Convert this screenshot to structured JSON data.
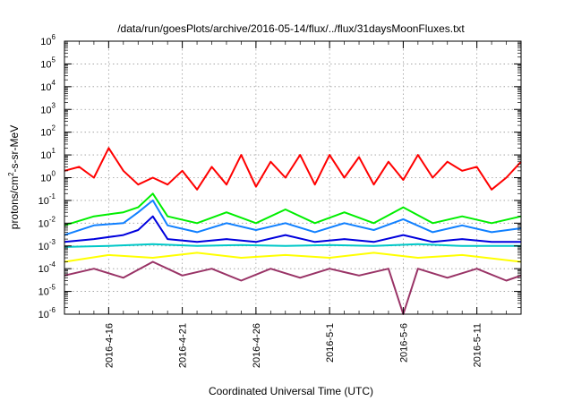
{
  "chart_data": {
    "type": "line",
    "title": "/data/run/goesPlots/archive/2016-05-14/flux/../flux/31daysMoonFluxes.txt",
    "xlabel": "Coordinated Universal Time (UTC)",
    "ylabel": "protons/cm2-s-sr-MeV",
    "ylabel_parts": [
      "protons/cm",
      "2",
      "-s-sr-MeV"
    ],
    "y_scale": "log",
    "ylim": [
      1e-06,
      1000000.0
    ],
    "xlim": [
      "2016-04-13",
      "2016-05-14"
    ],
    "x_ticks": [
      "2016-4-16",
      "2016-4-21",
      "2016-4-26",
      "2016-5-1",
      "2016-5-6",
      "2016-5-11"
    ],
    "y_ticks": [
      {
        "base": "10",
        "exp": "-6"
      },
      {
        "base": "10",
        "exp": "-5"
      },
      {
        "base": "10",
        "exp": "-4"
      },
      {
        "base": "10",
        "exp": "-3"
      },
      {
        "base": "10",
        "exp": "-2"
      },
      {
        "base": "10",
        "exp": "-1"
      },
      {
        "base": "10",
        "exp": "0"
      },
      {
        "base": "10",
        "exp": "1"
      },
      {
        "base": "10",
        "exp": "2"
      },
      {
        "base": "10",
        "exp": "3"
      },
      {
        "base": "10",
        "exp": "4"
      },
      {
        "base": "10",
        "exp": "5"
      },
      {
        "base": "10",
        "exp": "6"
      }
    ],
    "grid": true,
    "series": [
      {
        "color": "#ff0000",
        "x": [
          "2016-04-13",
          "2016-04-14",
          "2016-04-15",
          "2016-04-16",
          "2016-04-17",
          "2016-04-18",
          "2016-04-19",
          "2016-04-20",
          "2016-04-21",
          "2016-04-22",
          "2016-04-23",
          "2016-04-24",
          "2016-04-25",
          "2016-04-26",
          "2016-04-27",
          "2016-04-28",
          "2016-04-29",
          "2016-04-30",
          "2016-05-01",
          "2016-05-02",
          "2016-05-03",
          "2016-05-04",
          "2016-05-05",
          "2016-05-06",
          "2016-05-07",
          "2016-05-08",
          "2016-05-09",
          "2016-05-10",
          "2016-05-11",
          "2016-05-12",
          "2016-05-13",
          "2016-05-14"
        ],
        "values": [
          2,
          3,
          1,
          20,
          2,
          0.5,
          1,
          0.5,
          2,
          0.3,
          3,
          0.5,
          10,
          0.4,
          5,
          1,
          10,
          0.5,
          10,
          1,
          8,
          0.5,
          5,
          0.8,
          10,
          1,
          5,
          2,
          3,
          0.3,
          1,
          5
        ]
      },
      {
        "color": "#00ee00",
        "x": [
          "2016-04-13",
          "2016-04-15",
          "2016-04-17",
          "2016-04-18",
          "2016-04-19",
          "2016-04-20",
          "2016-04-22",
          "2016-04-24",
          "2016-04-26",
          "2016-04-28",
          "2016-04-30",
          "2016-05-02",
          "2016-05-04",
          "2016-05-06",
          "2016-05-08",
          "2016-05-10",
          "2016-05-12",
          "2016-05-14"
        ],
        "values": [
          0.008,
          0.02,
          0.03,
          0.05,
          0.2,
          0.02,
          0.01,
          0.03,
          0.01,
          0.04,
          0.01,
          0.03,
          0.01,
          0.05,
          0.01,
          0.02,
          0.01,
          0.02
        ]
      },
      {
        "color": "#1080ff",
        "x": [
          "2016-04-13",
          "2016-04-15",
          "2016-04-17",
          "2016-04-18",
          "2016-04-19",
          "2016-04-20",
          "2016-04-22",
          "2016-04-24",
          "2016-04-26",
          "2016-04-28",
          "2016-04-30",
          "2016-05-02",
          "2016-05-04",
          "2016-05-06",
          "2016-05-08",
          "2016-05-10",
          "2016-05-12",
          "2016-05-14"
        ],
        "values": [
          0.003,
          0.008,
          0.01,
          0.03,
          0.1,
          0.008,
          0.004,
          0.01,
          0.005,
          0.01,
          0.004,
          0.01,
          0.005,
          0.015,
          0.004,
          0.008,
          0.004,
          0.006
        ]
      },
      {
        "color": "#0000dd",
        "x": [
          "2016-04-13",
          "2016-04-15",
          "2016-04-17",
          "2016-04-18",
          "2016-04-19",
          "2016-04-20",
          "2016-04-22",
          "2016-04-24",
          "2016-04-26",
          "2016-04-28",
          "2016-04-30",
          "2016-05-02",
          "2016-05-04",
          "2016-05-06",
          "2016-05-08",
          "2016-05-10",
          "2016-05-12",
          "2016-05-14"
        ],
        "values": [
          0.0015,
          0.002,
          0.003,
          0.005,
          0.02,
          0.002,
          0.0015,
          0.002,
          0.0015,
          0.003,
          0.0015,
          0.002,
          0.0015,
          0.003,
          0.0015,
          0.002,
          0.0015,
          0.0015
        ]
      },
      {
        "color": "#00c8c8",
        "x": [
          "2016-04-13",
          "2016-04-16",
          "2016-04-19",
          "2016-04-22",
          "2016-04-25",
          "2016-04-28",
          "2016-05-01",
          "2016-05-04",
          "2016-05-07",
          "2016-05-10",
          "2016-05-14"
        ],
        "values": [
          0.0009,
          0.001,
          0.0012,
          0.001,
          0.0011,
          0.001,
          0.0011,
          0.001,
          0.0012,
          0.001,
          0.001
        ]
      },
      {
        "color": "#ffff00",
        "x": [
          "2016-04-13",
          "2016-04-16",
          "2016-04-19",
          "2016-04-22",
          "2016-04-25",
          "2016-04-28",
          "2016-05-01",
          "2016-05-04",
          "2016-05-07",
          "2016-05-10",
          "2016-05-14"
        ],
        "values": [
          0.0002,
          0.0004,
          0.0003,
          0.0005,
          0.0003,
          0.0004,
          0.0003,
          0.0005,
          0.0003,
          0.0004,
          0.0002
        ]
      },
      {
        "color": "#993366",
        "x": [
          "2016-04-13",
          "2016-04-15",
          "2016-04-17",
          "2016-04-19",
          "2016-04-21",
          "2016-04-23",
          "2016-04-25",
          "2016-04-27",
          "2016-04-29",
          "2016-05-01",
          "2016-05-03",
          "2016-05-05",
          "2016-05-06",
          "2016-05-07",
          "2016-05-09",
          "2016-05-11",
          "2016-05-13",
          "2016-05-14"
        ],
        "values": [
          5e-05,
          0.0001,
          4e-05,
          0.0002,
          5e-05,
          0.0001,
          3e-05,
          0.0001,
          4e-05,
          0.0001,
          5e-05,
          0.0001,
          1e-06,
          0.0001,
          4e-05,
          0.0001,
          3e-05,
          5e-05
        ]
      }
    ]
  }
}
